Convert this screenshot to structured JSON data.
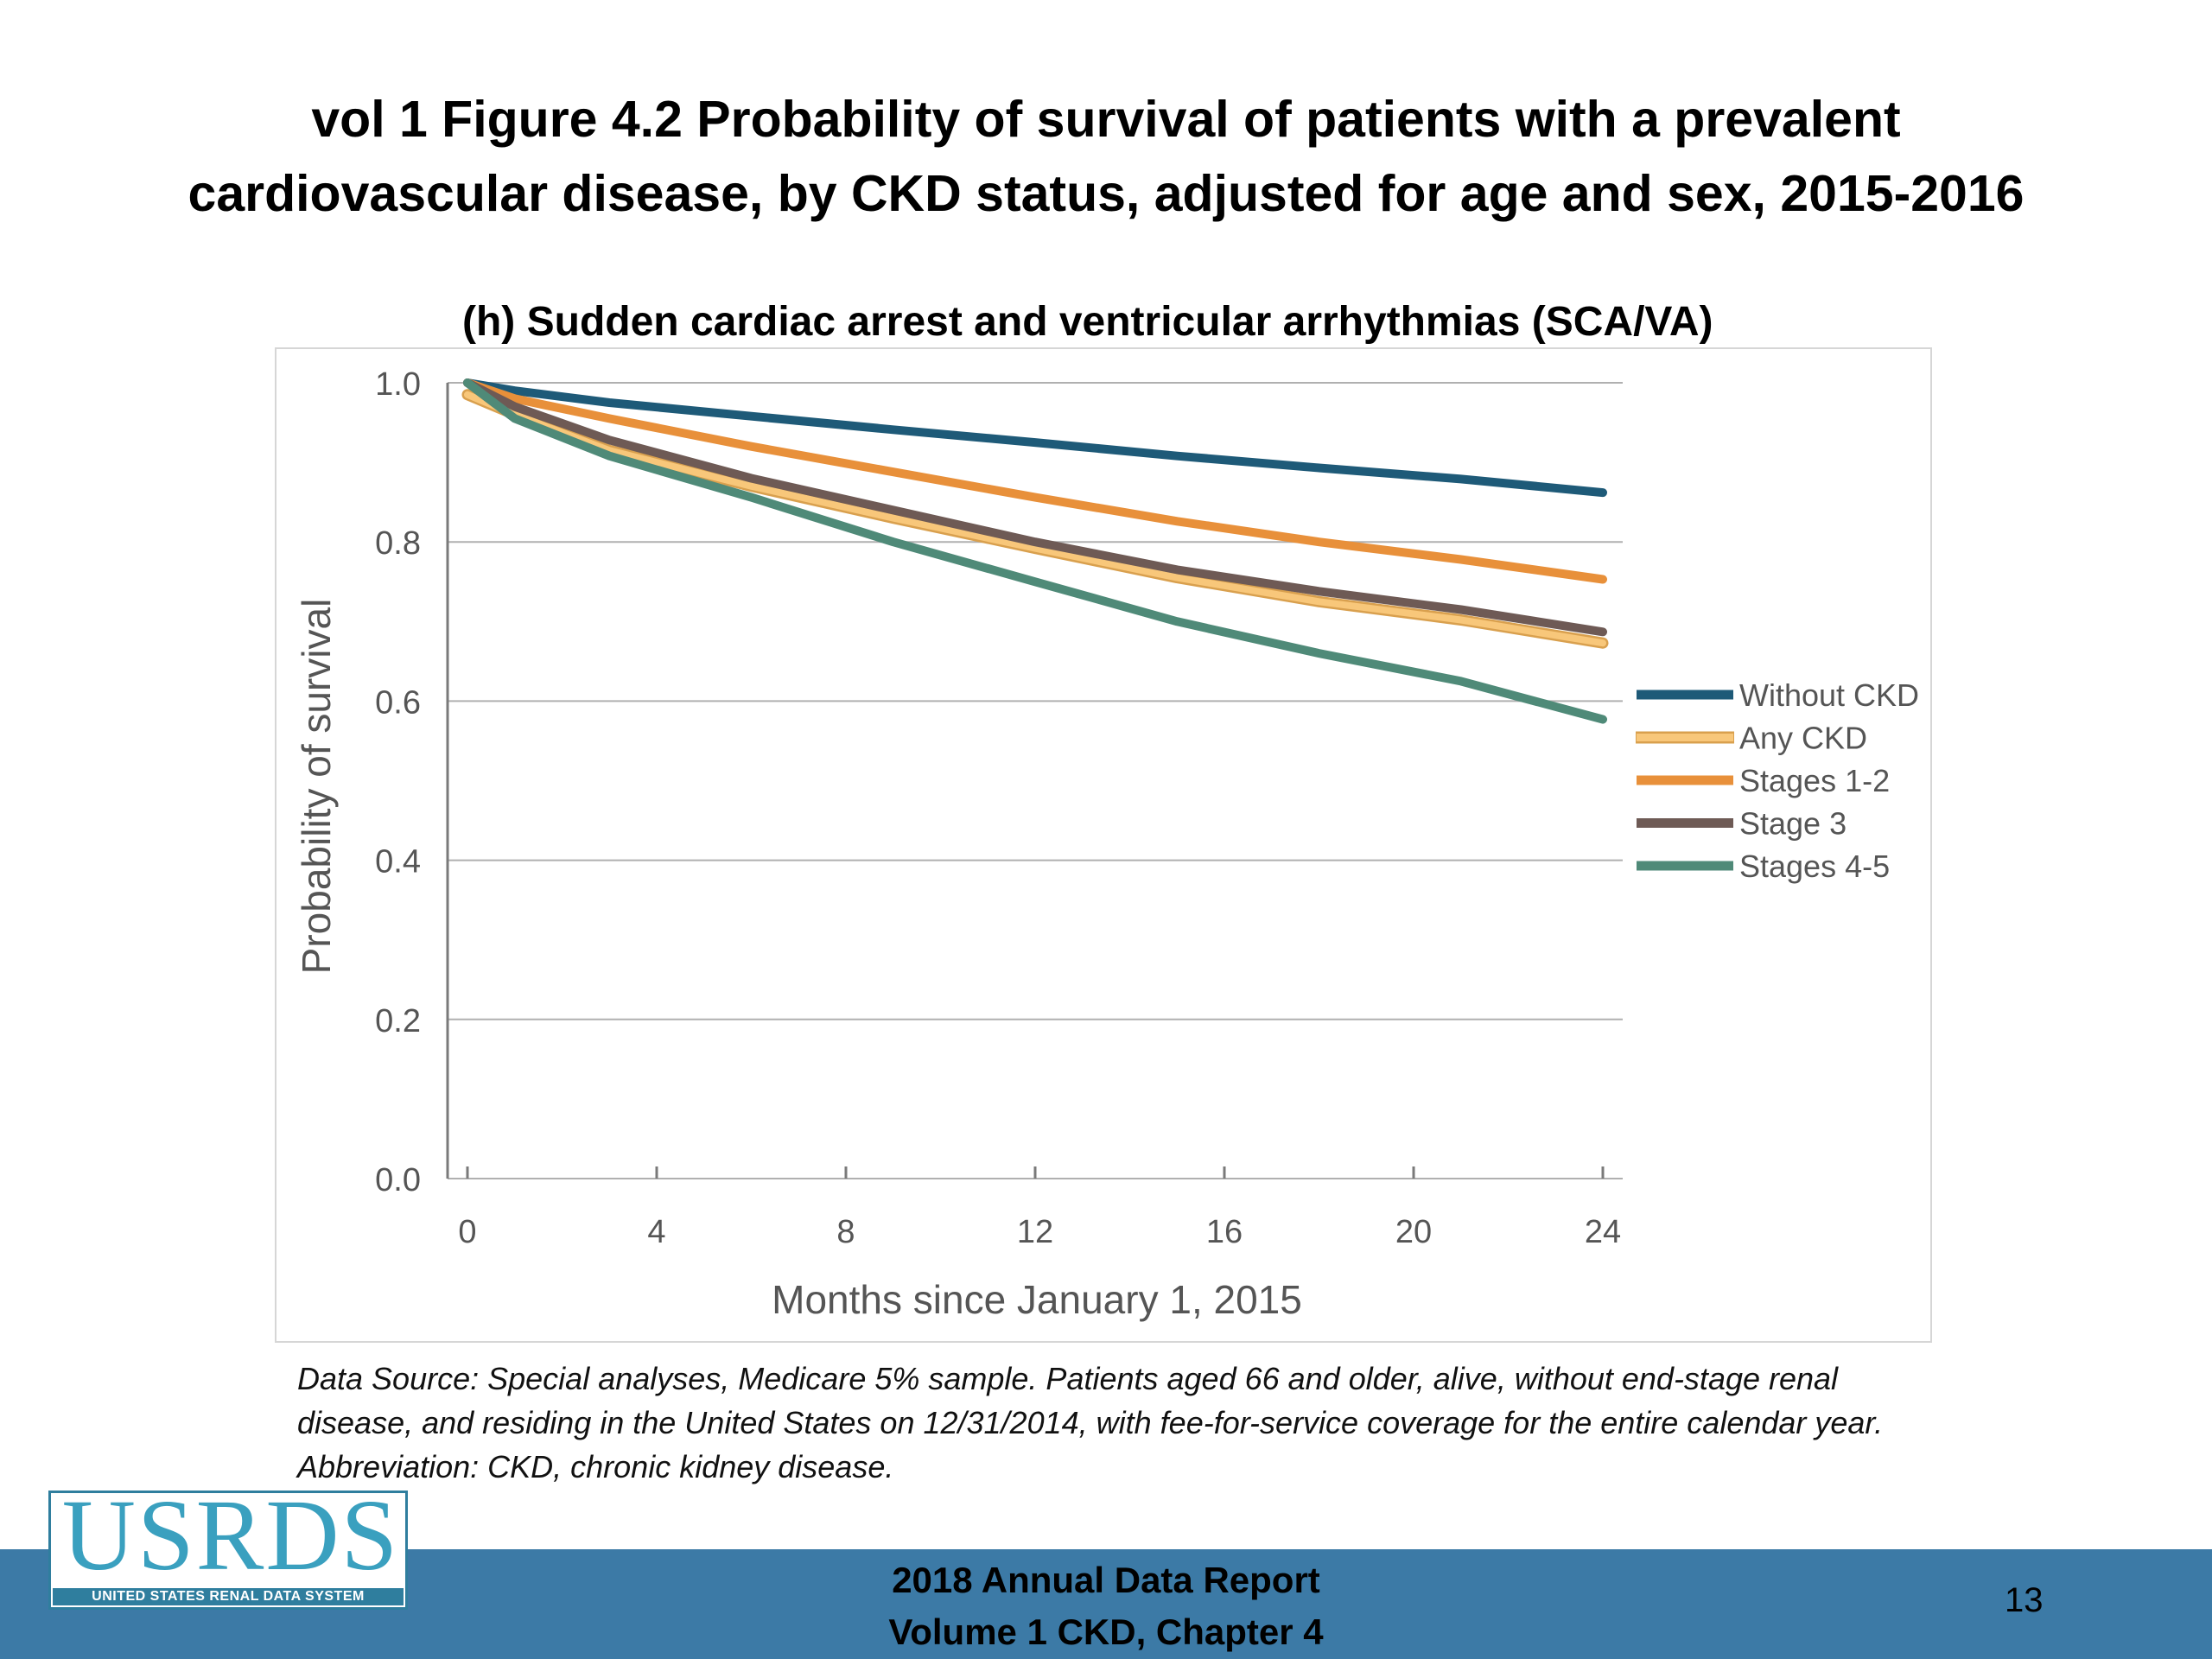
{
  "slide": {
    "title_line1": "vol 1 Figure 4.2 Probability of survival of patients with a prevalent",
    "title_line2": "cardiovascular disease, by CKD status, adjusted for age and sex, 2015-2016",
    "source_note": "Data Source: Special analyses, Medicare 5% sample. Patients aged 66 and older, alive, without end-stage renal disease, and residing in the United States on 12/31/2014, with fee-for-service coverage for the entire calendar year. Abbreviation: CKD, chronic kidney disease.",
    "footer_line1": "2018 Annual Data Report",
    "footer_line2": "Volume 1 CKD, Chapter 4",
    "page_number": "13",
    "logo_text": "USRDS",
    "logo_subtext": "UNITED STATES RENAL DATA SYSTEM",
    "colors": {
      "footer_bar": "#3c7aa6",
      "logo": "#3aa0bf"
    }
  },
  "chart_data": {
    "type": "line",
    "title": "(h) Sudden cardiac arrest and ventricular arrhythmias (SCA/VA)",
    "xlabel": "Months since January 1, 2015",
    "ylabel": "Probability of survival",
    "xlim": [
      0,
      24
    ],
    "ylim": [
      0,
      1.0
    ],
    "x_ticks": [
      "0",
      "4",
      "8",
      "12",
      "16",
      "20",
      "24"
    ],
    "y_ticks": [
      "0.0",
      "0.2",
      "0.4",
      "0.6",
      "0.8",
      "1.0"
    ],
    "grid": "horizontal",
    "legend_position": "right",
    "x": [
      0,
      1,
      3,
      6,
      9,
      12,
      15,
      18,
      21,
      24
    ],
    "series": [
      {
        "name": "Without CKD",
        "color": "#1e5a78",
        "values": [
          1.0,
          0.99,
          0.975,
          0.958,
          0.941,
          0.925,
          0.908,
          0.893,
          0.879,
          0.862
        ]
      },
      {
        "name": "Any CKD",
        "color": "#f8c77a",
        "values": [
          0.985,
          0.96,
          0.915,
          0.87,
          0.83,
          0.792,
          0.755,
          0.725,
          0.702,
          0.673
        ]
      },
      {
        "name": "Stages 1-2",
        "color": "#e8903a",
        "values": [
          1.0,
          0.98,
          0.955,
          0.92,
          0.888,
          0.856,
          0.826,
          0.8,
          0.778,
          0.753
        ]
      },
      {
        "name": "Stage 3",
        "color": "#6e5a55",
        "values": [
          1.0,
          0.97,
          0.928,
          0.88,
          0.84,
          0.8,
          0.765,
          0.738,
          0.715,
          0.687
        ]
      },
      {
        "name": "Stages 4-5",
        "color": "#4f8a78",
        "values": [
          1.0,
          0.955,
          0.908,
          0.856,
          0.8,
          0.75,
          0.7,
          0.66,
          0.625,
          0.577
        ]
      }
    ]
  }
}
